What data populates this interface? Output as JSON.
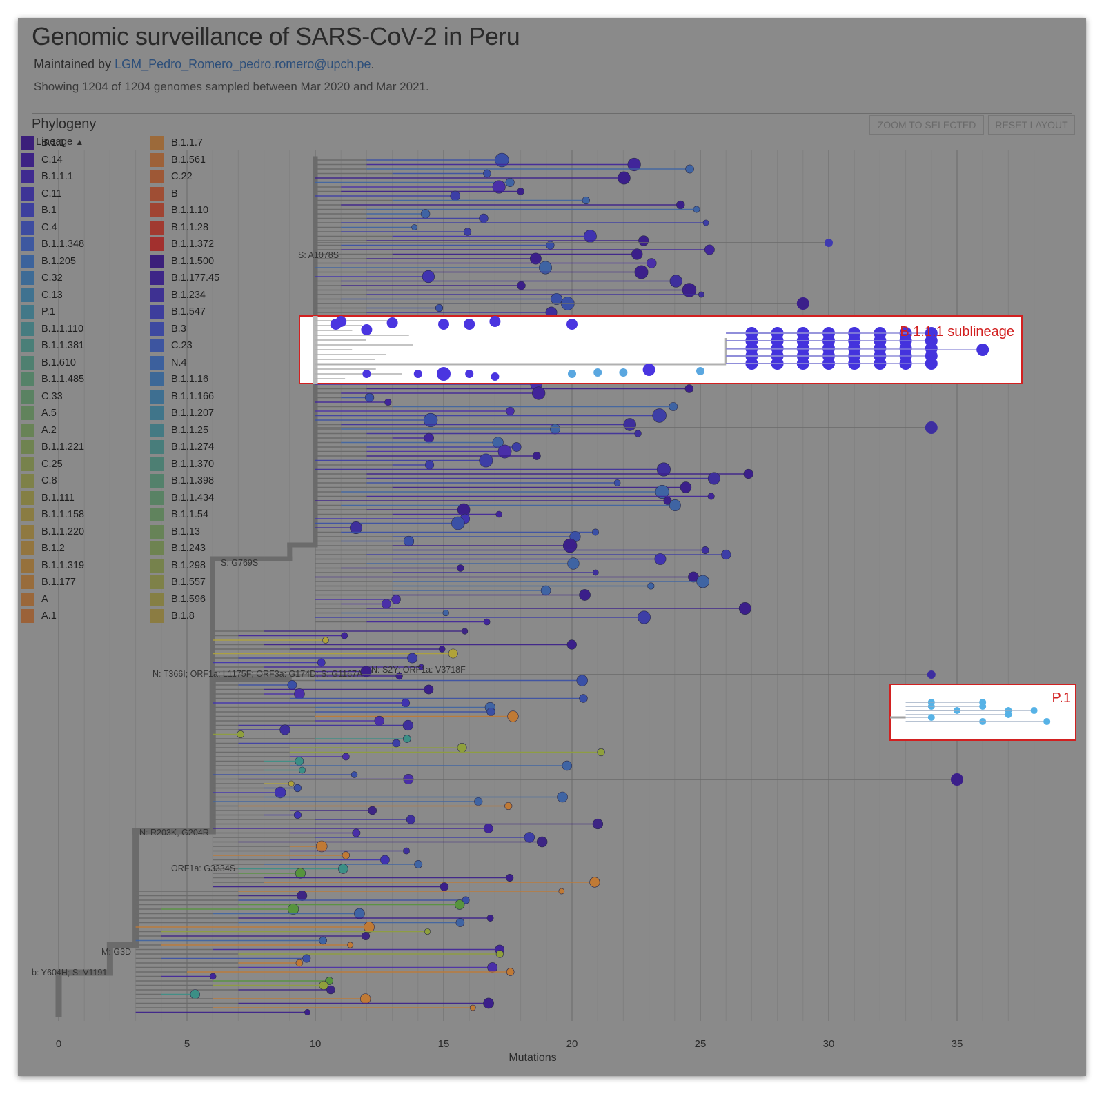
{
  "header": {
    "title": "Genomic surveillance of SARS-CoV-2 in Peru",
    "maintained_prefix": "Maintained by ",
    "maintainer_link": "LGM_Pedro_Romero_pedro.romero@upch.pe",
    "maintained_suffix": ".",
    "showing": "Showing 1204 of 1204 genomes sampled between Mar 2020 and Mar 2021."
  },
  "panel": {
    "title": "Phylogeny",
    "buttons": {
      "zoom": "ZOOM TO SELECTED",
      "reset": "RESET LAYOUT"
    },
    "legend_toggle": "Lineage"
  },
  "colors": {
    "panel_bg": "#8a8a8a",
    "branch": "#6b6b6b",
    "highlight_box": "#d22020",
    "highlight_fill": "#ffffff",
    "b111_tip": "#4433dd",
    "p1_tip": "#56b2e6"
  },
  "legend": {
    "left": [
      {
        "label": "B.1.1",
        "color": "#3b1f7a"
      },
      {
        "label": "C.14",
        "color": "#3d2284"
      },
      {
        "label": "B.1.1.1",
        "color": "#3f2a90"
      },
      {
        "label": "C.11",
        "color": "#3e3496"
      },
      {
        "label": "B.1",
        "color": "#3d3f9e"
      },
      {
        "label": "C.4",
        "color": "#3d4ca0"
      },
      {
        "label": "B.1.1.348",
        "color": "#3d58a0"
      },
      {
        "label": "B.1.205",
        "color": "#3c639c"
      },
      {
        "label": "C.32",
        "color": "#3d6b96"
      },
      {
        "label": "C.13",
        "color": "#3f7290"
      },
      {
        "label": "P.1",
        "color": "#427888"
      },
      {
        "label": "B.1.1.110",
        "color": "#467c80"
      },
      {
        "label": "B.1.1.381",
        "color": "#4a7f78"
      },
      {
        "label": "B.1.610",
        "color": "#4f8070"
      },
      {
        "label": "B.1.1.485",
        "color": "#558268"
      },
      {
        "label": "C.33",
        "color": "#5a8262"
      },
      {
        "label": "A.5",
        "color": "#61835c"
      },
      {
        "label": "A.2",
        "color": "#688356"
      },
      {
        "label": "B.1.1.221",
        "color": "#6f8350"
      },
      {
        "label": "C.25",
        "color": "#77824c"
      },
      {
        "label": "C.8",
        "color": "#7e8148"
      },
      {
        "label": "B.1.111",
        "color": "#847f44"
      },
      {
        "label": "B.1.1.158",
        "color": "#8a7c42"
      },
      {
        "label": "B.1.1.220",
        "color": "#8f7940"
      },
      {
        "label": "B.1.2",
        "color": "#93753e"
      },
      {
        "label": "B.1.1.319",
        "color": "#96713c"
      },
      {
        "label": "B.1.177",
        "color": "#986c3b"
      },
      {
        "label": "A",
        "color": "#9a673a"
      },
      {
        "label": "A.1",
        "color": "#9b6239"
      }
    ],
    "right": [
      {
        "label": "B.1.1.7",
        "color": "#9c6a3a"
      },
      {
        "label": "B.1.561",
        "color": "#9d6138"
      },
      {
        "label": "C.22",
        "color": "#9e5836"
      },
      {
        "label": "B",
        "color": "#9f4e34"
      },
      {
        "label": "B.1.1.10",
        "color": "#a04432"
      },
      {
        "label": "B.1.1.28",
        "color": "#a13a30"
      },
      {
        "label": "B.1.1.372",
        "color": "#a2302e"
      },
      {
        "label": "B.1.1.500",
        "color": "#3b1f7a"
      },
      {
        "label": "B.1.177.45",
        "color": "#3d2587"
      },
      {
        "label": "B.1.234",
        "color": "#3e3192"
      },
      {
        "label": "B.1.547",
        "color": "#3d3d9c"
      },
      {
        "label": "B.3",
        "color": "#3d49a0"
      },
      {
        "label": "C.23",
        "color": "#3d55a0"
      },
      {
        "label": "N.4",
        "color": "#3c609d"
      },
      {
        "label": "B.1.1.16",
        "color": "#3d6897"
      },
      {
        "label": "B.1.1.166",
        "color": "#3e6f91"
      },
      {
        "label": "B.1.1.207",
        "color": "#40758a"
      },
      {
        "label": "B.1.1.25",
        "color": "#447a83"
      },
      {
        "label": "B.1.1.274",
        "color": "#487d7b"
      },
      {
        "label": "B.1.1.370",
        "color": "#4d7f73"
      },
      {
        "label": "B.1.1.398",
        "color": "#53816b"
      },
      {
        "label": "B.1.1.434",
        "color": "#598264"
      },
      {
        "label": "B.1.1.54",
        "color": "#60835d"
      },
      {
        "label": "B.1.13",
        "color": "#678357"
      },
      {
        "label": "B.1.243",
        "color": "#6e8351"
      },
      {
        "label": "B.1.298",
        "color": "#76824c"
      },
      {
        "label": "B.1.557",
        "color": "#7e8148"
      },
      {
        "label": "B.1.596",
        "color": "#857f44"
      },
      {
        "label": "B.1.8",
        "color": "#8b7c42"
      }
    ]
  },
  "axis": {
    "label": "Mutations",
    "ticks": [
      "0",
      "5",
      "10",
      "15",
      "20",
      "25",
      "30",
      "35"
    ],
    "range": [
      0,
      38
    ]
  },
  "branch_labels": [
    "S: A1078S",
    "N: T366I; ORF1a: L1175F; ORF3a: G174D; S: G1167A",
    "N: S2Y; ORF1a: V3718F",
    "N: R203K, G204R",
    "ORF1a: G3334S",
    "M: G3D",
    "b: Y604H; S: V1191",
    "S: G769S"
  ],
  "annotations": [
    {
      "label": "B.1.1.1 sublineage"
    },
    {
      "label": "P.1"
    }
  ]
}
